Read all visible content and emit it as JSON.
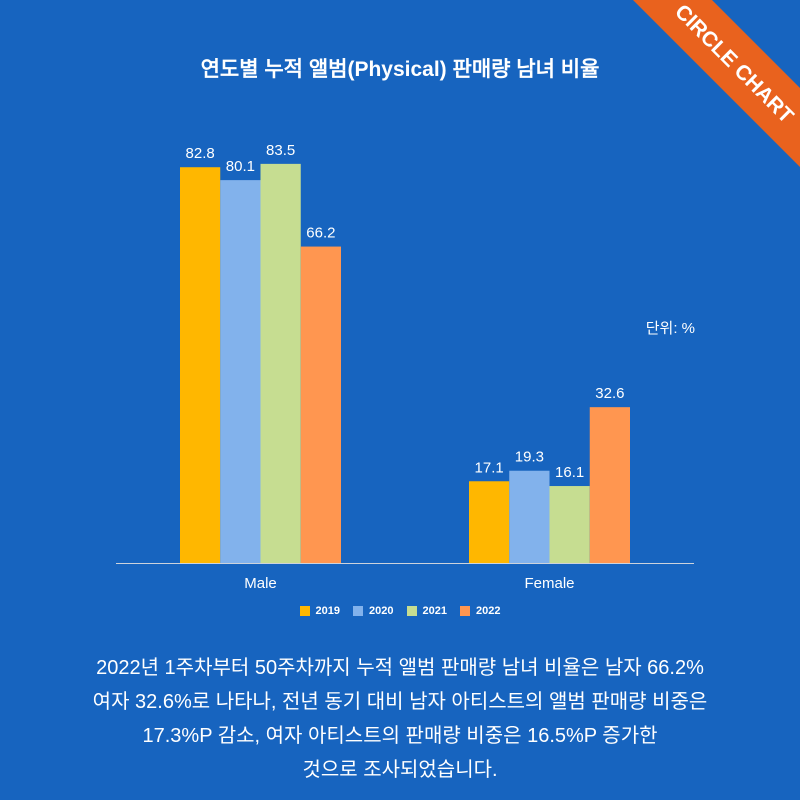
{
  "colors": {
    "background": "#1764BF",
    "text": "#FFFFFF",
    "ribbon": "#E9621E",
    "axis": "#CDD3DC"
  },
  "brand": {
    "ribbon_label": "CIRCLE CHART"
  },
  "chart_data": {
    "type": "bar",
    "title": "연도별 누적 앨범(Physical) 판매량 남녀 비율",
    "categories": [
      "Male",
      "Female"
    ],
    "series": [
      {
        "name": "2019",
        "values": [
          82.8,
          17.1
        ],
        "color": "#FFB700"
      },
      {
        "name": "2020",
        "values": [
          80.1,
          19.3
        ],
        "color": "#82B2EC"
      },
      {
        "name": "2021",
        "values": [
          83.5,
          16.1
        ],
        "color": "#C6DD91"
      },
      {
        "name": "2022",
        "values": [
          66.2,
          32.6
        ],
        "color": "#FF9650"
      }
    ],
    "unit_label": "단위: %",
    "ylim": [
      0,
      100
    ],
    "y_axis_visible": false,
    "grid": false,
    "data_labels": true,
    "legend_position": "bottom"
  },
  "description": {
    "lines": [
      "2022년 1주차부터 50주차까지 누적 앨범 판매량 남녀 비율은 남자 66.2%",
      "여자 32.6%로 나타나, 전년 동기 대비 남자 아티스트의 앨범 판매량 비중은",
      "17.3%P 감소, 여자 아티스트의 판매량 비중은 16.5%P 증가한",
      "것으로 조사되었습니다."
    ]
  }
}
